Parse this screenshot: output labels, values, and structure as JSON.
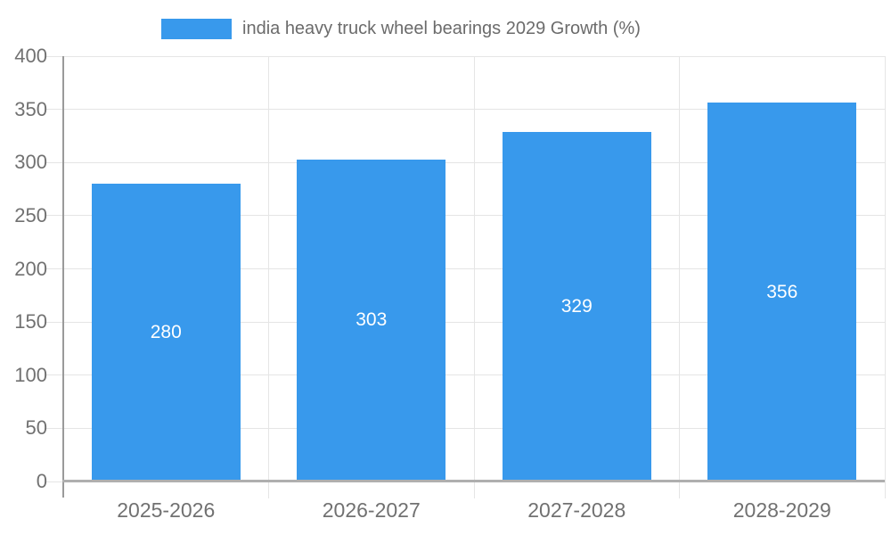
{
  "chart_data": {
    "type": "bar",
    "title": "india heavy truck wheel bearings 2029 Growth (%)",
    "legend": {
      "position": "top",
      "label": "india heavy truck wheel bearings 2029 Growth (%)"
    },
    "categories": [
      "2025-2026",
      "2026-2027",
      "2027-2028",
      "2028-2029"
    ],
    "values": [
      280,
      303,
      329,
      356
    ],
    "bar_value_labels": [
      "280",
      "303",
      "329",
      "356"
    ],
    "xlabel": "",
    "ylabel": "",
    "ylim": [
      0,
      400
    ],
    "yticks": [
      0,
      50,
      100,
      150,
      200,
      250,
      300,
      350,
      400
    ],
    "grid": true,
    "colors": {
      "bar": "#3899EC",
      "bar_label_text": "#FFFFFF",
      "legend_text": "#6B6B6B",
      "axis_text": "#717171",
      "gridline": "#E5E5E5",
      "y_axis_line": "#9A9A9A",
      "x_axis_line": "#AFAFAF",
      "background": "#FFFFFF"
    }
  }
}
